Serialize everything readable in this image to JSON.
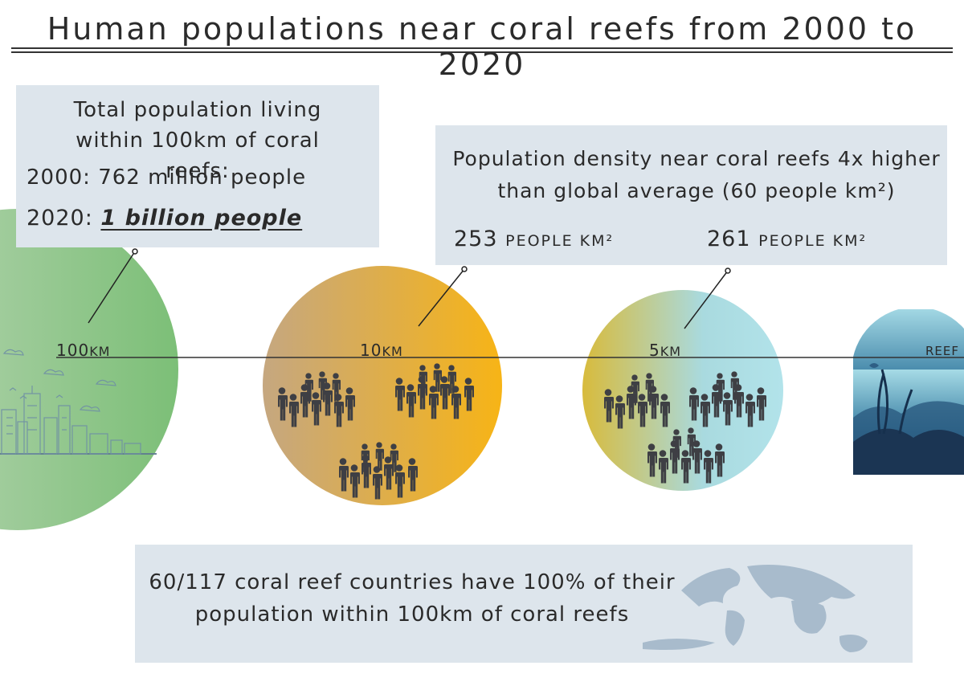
{
  "title": "Human populations near coral reefs from 2000 to 2020",
  "total_box": {
    "heading": "Total population living within 100km of coral reefs:",
    "year_2000_label": "2000:",
    "year_2000_value": "762 million people",
    "year_2020_label": "2020:",
    "year_2020_value": "1 billion people"
  },
  "density_box": {
    "heading": "Population density near coral reefs 4x higher than global average (60 people km²)",
    "within_10km_value": "253",
    "within_10km_unit": "people km²",
    "within_5km_value": "261",
    "within_5km_unit": "people km²"
  },
  "bands": {
    "band_100": {
      "num": "100",
      "unit": "km"
    },
    "band_10": {
      "num": "10",
      "unit": "km"
    },
    "band_5": {
      "num": "5",
      "unit": "km"
    },
    "reef": "reef"
  },
  "countries_box": {
    "text": "60/117 coral reef countries have 100% of their population within 100km of coral reefs"
  },
  "colors": {
    "circle_100_from": "#b5cfb2",
    "circle_100_to": "#7fc07a",
    "circle_10_from": "#c9a77a",
    "circle_10_to": "#f6b31a",
    "circle_5_from": "#d9bd3a",
    "circle_5_to": "#aee0ea",
    "reef_from": "#a9dbe7",
    "reef_to": "#1e3c5c",
    "box_fill": "#dde5ec",
    "people": "#3d3f44"
  },
  "icons": [
    "city-skyline-icon",
    "crowd-icon",
    "coral-reef-icon",
    "world-map-icon"
  ]
}
